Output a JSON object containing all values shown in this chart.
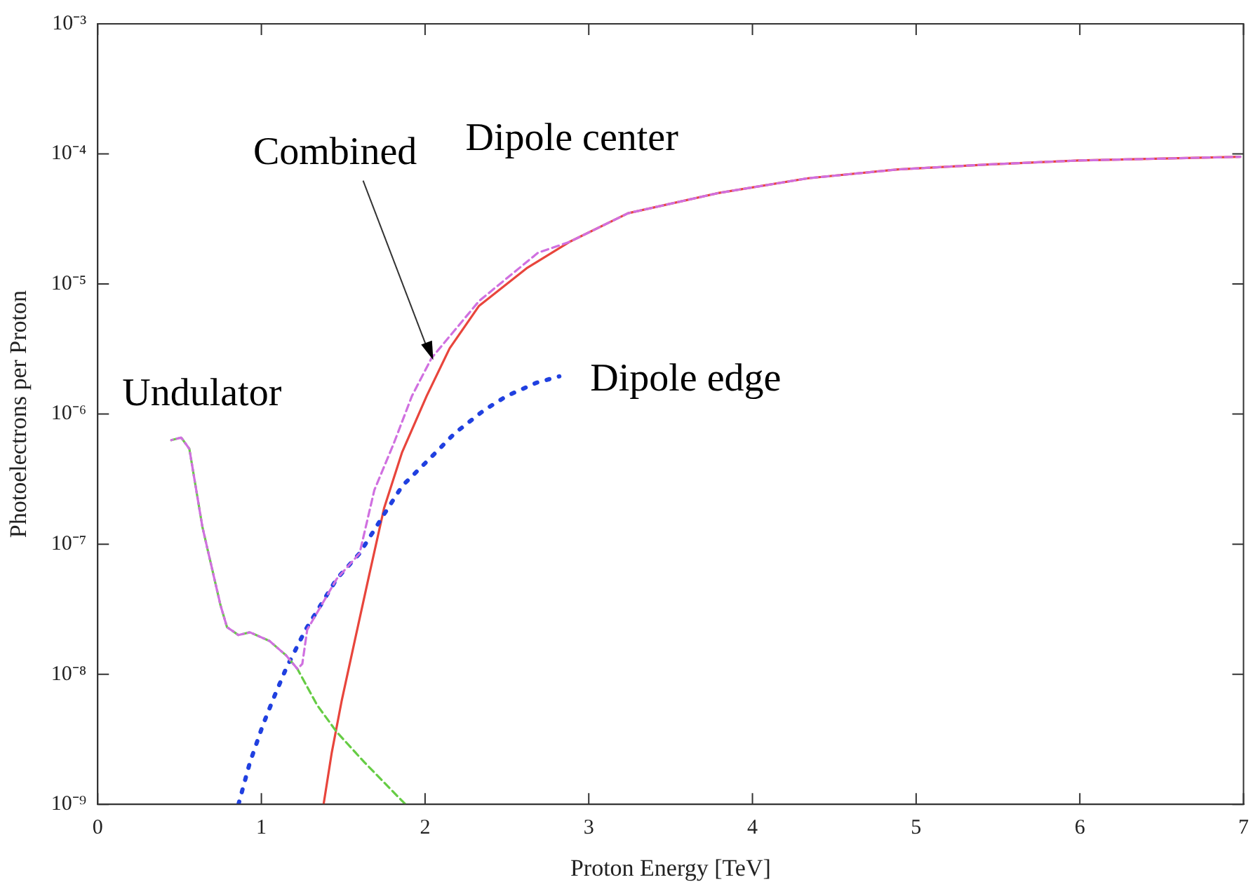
{
  "chart_data": {
    "type": "line",
    "xlabel": "Proton Energy [TeV]",
    "ylabel": "Photoelectrons per Proton",
    "xlim": [
      0,
      7
    ],
    "xticks": [
      0,
      1,
      2,
      3,
      4,
      5,
      6,
      7
    ],
    "ylim": [
      1e-09,
      0.001
    ],
    "yticks": [
      {
        "value": 1e-09,
        "label": "10⁻⁹"
      },
      {
        "value": 1e-08,
        "label": "10⁻⁸"
      },
      {
        "value": 1e-07,
        "label": "10⁻⁷"
      },
      {
        "value": 1e-06,
        "label": "10⁻⁶"
      },
      {
        "value": 1e-05,
        "label": "10⁻⁵"
      },
      {
        "value": 0.0001,
        "label": "10⁻⁴"
      },
      {
        "value": 0.001,
        "label": "10⁻³"
      }
    ],
    "log": "y",
    "grid": false,
    "legend": false,
    "marker": "none",
    "annotations": [
      {
        "text": "Combined",
        "x": 2.05,
        "y": 2.6e-06
      }
    ],
    "series": [
      {
        "name": "Undulator",
        "color": "#66cc44",
        "line_style": "dashed",
        "x": [
          0.45,
          0.51,
          0.56,
          0.64,
          0.75,
          0.79,
          0.86,
          0.93,
          1.05,
          1.15,
          1.22,
          1.34,
          1.46,
          1.63,
          1.88
        ],
        "values": [
          6.3e-07,
          6.6e-07,
          5.4e-07,
          1.35e-07,
          3.4e-08,
          2.3e-08,
          2e-08,
          2.1e-08,
          1.8e-08,
          1.4e-08,
          1.1e-08,
          5.8e-09,
          3.6e-09,
          2.1e-09,
          1e-09
        ]
      },
      {
        "name": "Dipole edge",
        "color": "#2040e0",
        "line_style": "dotted",
        "x": [
          0.86,
          0.93,
          1.01,
          1.08,
          1.15,
          1.27,
          1.46,
          1.6,
          1.75,
          1.86,
          2.04,
          2.18,
          2.36,
          2.5,
          2.68,
          2.82
        ],
        "values": [
          1e-09,
          2.1e-09,
          4.1e-09,
          6.8e-09,
          1.1e-08,
          2.2e-08,
          5.4e-08,
          8.5e-08,
          1.7e-07,
          2.8e-07,
          4.7e-07,
          7.1e-07,
          1.07e-06,
          1.38e-06,
          1.74e-06,
          1.95e-06
        ]
      },
      {
        "name": "Dipole center",
        "color": "#e8453c",
        "line_style": "solid",
        "x": [
          1.38,
          1.43,
          1.49,
          1.57,
          1.66,
          1.75,
          1.86,
          2.01,
          2.15,
          2.33,
          2.62,
          2.88,
          3.24,
          3.79,
          4.34,
          4.89,
          5.44,
          5.99,
          6.98
        ],
        "values": [
          1e-09,
          2.5e-09,
          6.2e-09,
          1.8e-08,
          5.9e-08,
          1.9e-07,
          5.1e-07,
          1.38e-06,
          3.2e-06,
          6.8e-06,
          1.32e-05,
          2.1e-05,
          3.5e-05,
          5e-05,
          6.5e-05,
          7.6e-05,
          8.3e-05,
          8.9e-05,
          9.5e-05
        ]
      },
      {
        "color": "#d070e0",
        "line_style": "dashed",
        "x": [
          0.45,
          0.51,
          0.56,
          0.64,
          0.75,
          0.79,
          0.86,
          0.93,
          1.05,
          1.15,
          1.22,
          1.25,
          1.28,
          1.46,
          1.6,
          1.69,
          1.81,
          1.92,
          2.04,
          2.33,
          2.69,
          2.88,
          3.24,
          3.79,
          4.34,
          4.89,
          5.44,
          5.99,
          6.98
        ],
        "values": [
          6.3e-07,
          6.6e-07,
          5.4e-07,
          1.35e-07,
          3.4e-08,
          2.3e-08,
          2e-08,
          2.1e-08,
          1.8e-08,
          1.4e-08,
          1.1e-08,
          1.2e-08,
          2.2e-08,
          5.4e-08,
          8.5e-08,
          2.6e-07,
          6e-07,
          1.38e-06,
          2.7e-06,
          7.4e-06,
          1.74e-05,
          2.1e-05,
          3.5e-05,
          5e-05,
          6.5e-05,
          7.6e-05,
          8.3e-05,
          8.9e-05,
          9.5e-05
        ]
      }
    ]
  }
}
